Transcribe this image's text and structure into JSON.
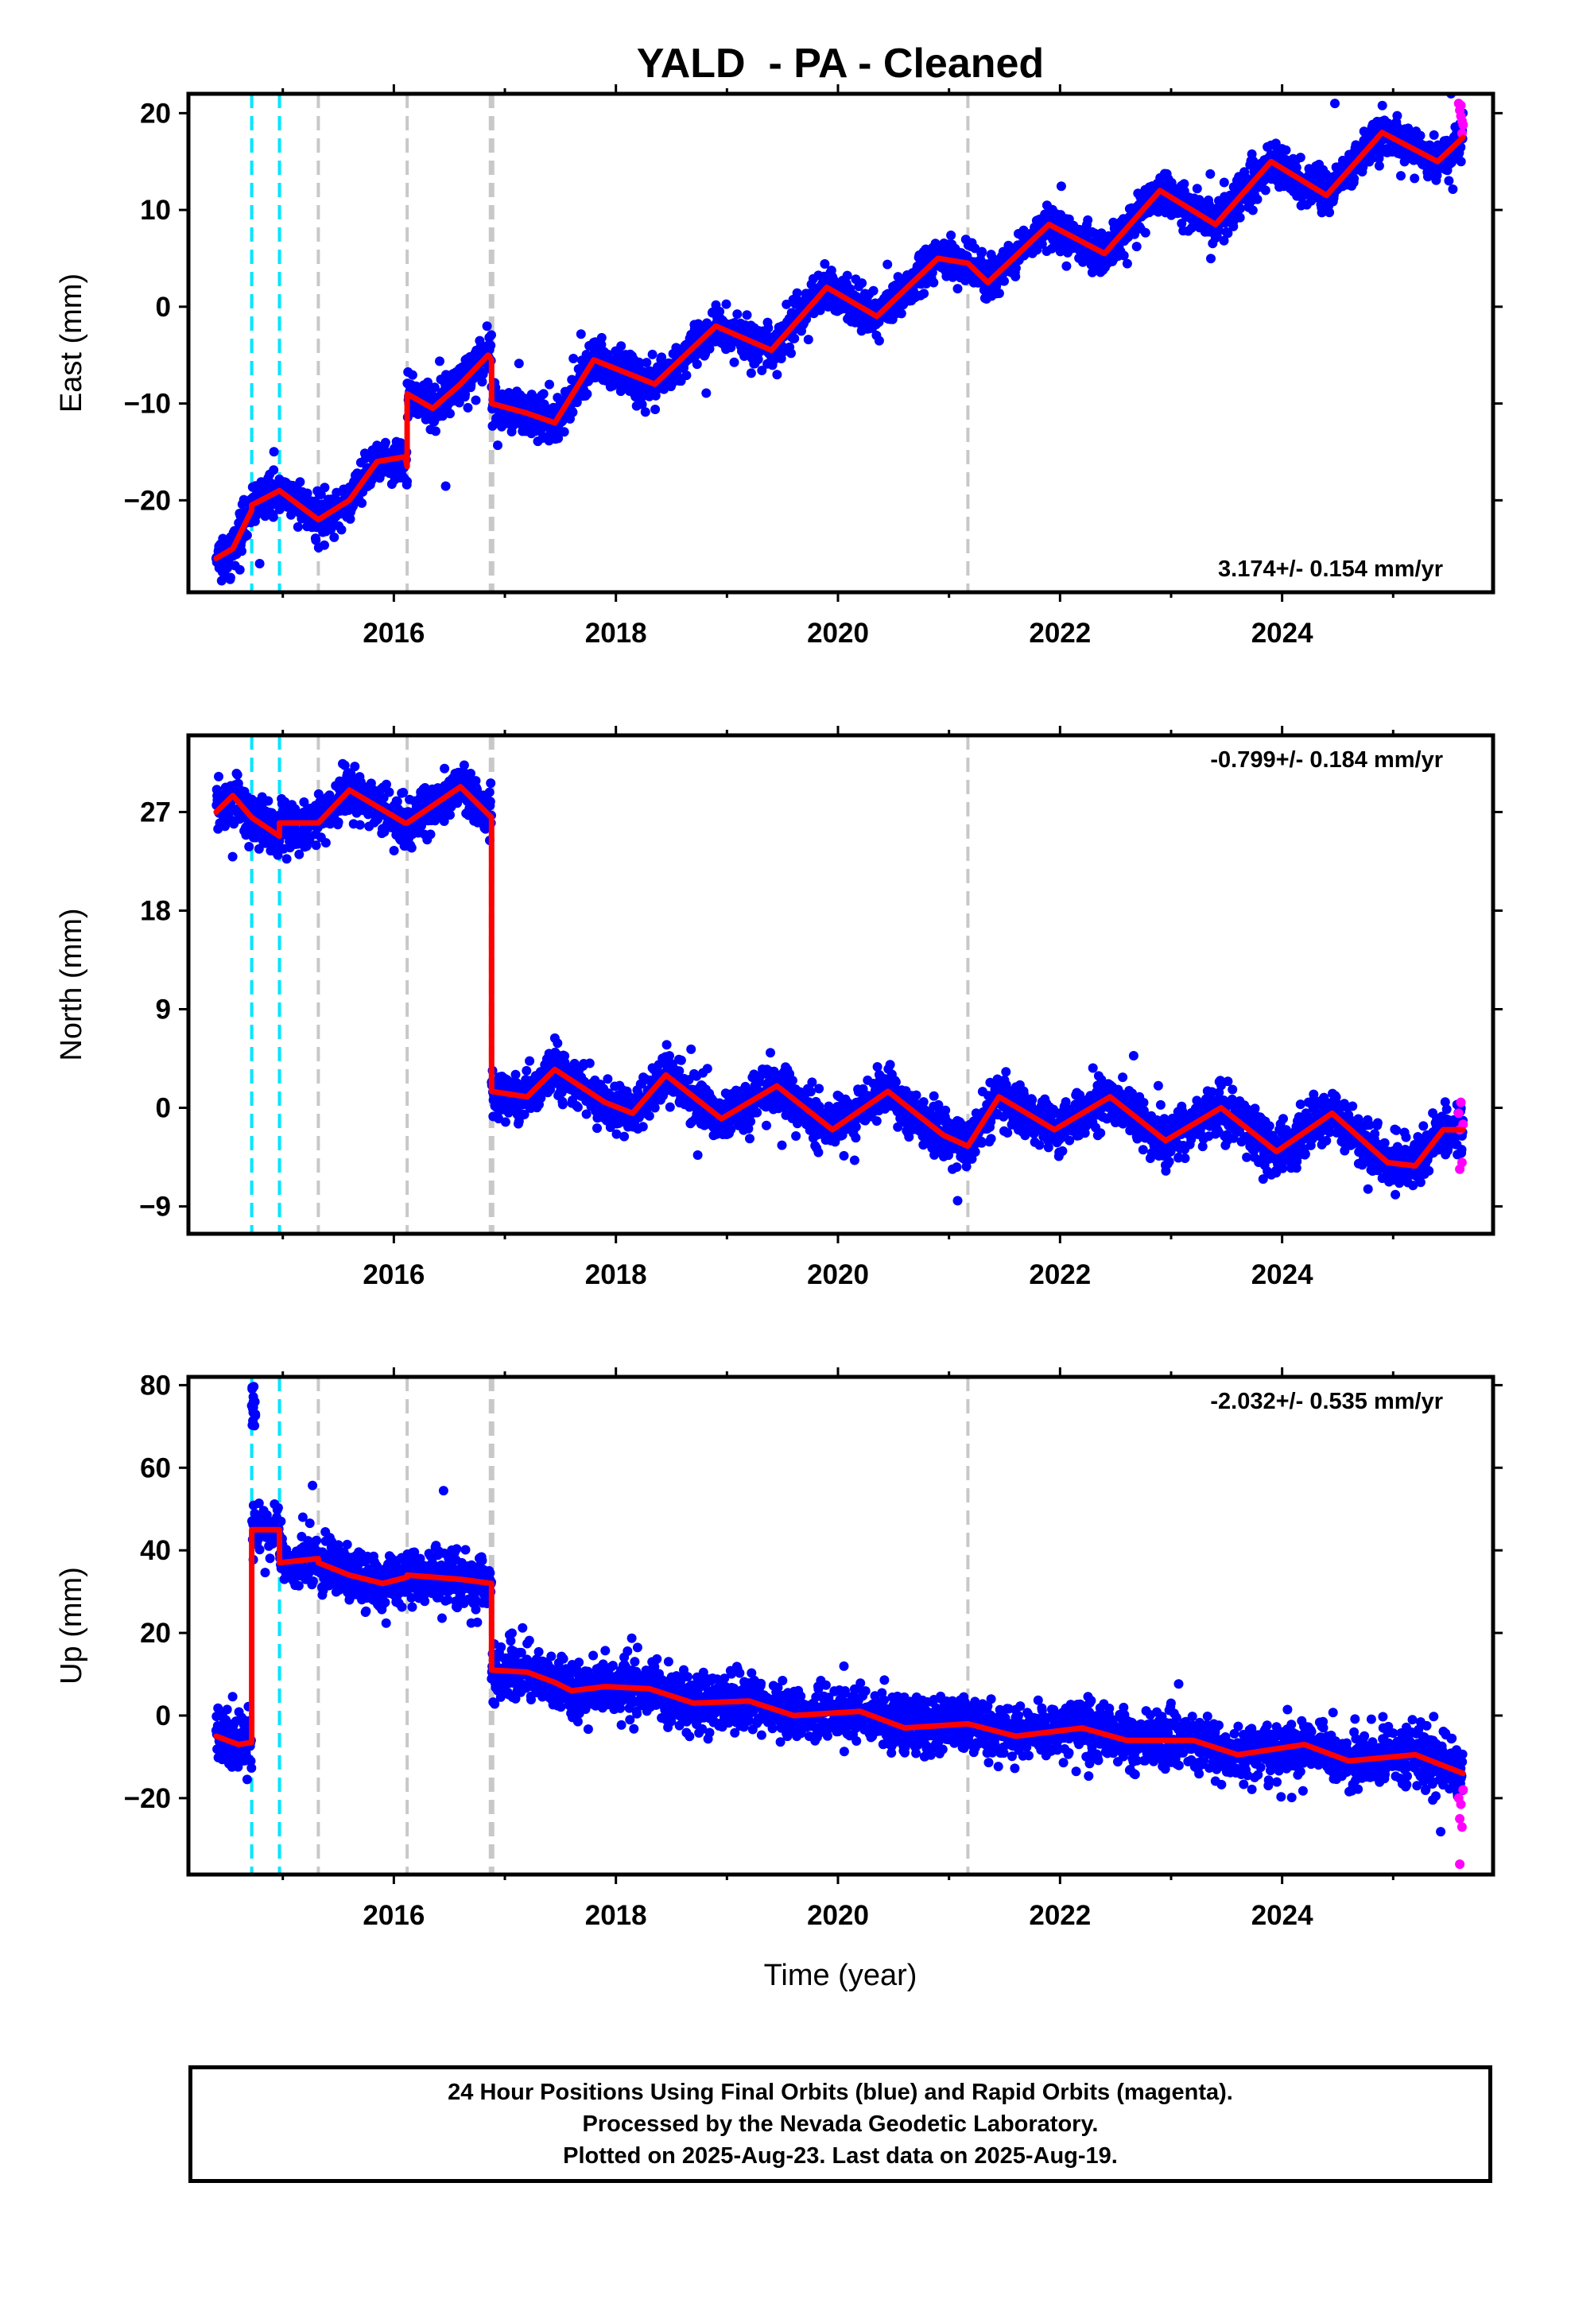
{
  "chart_data": {
    "title": "YALD  - PA - Cleaned",
    "xlabel": "Time (year)",
    "x_ticks": [
      2016,
      2018,
      2020,
      2022,
      2024
    ],
    "x_range": [
      2014.15,
      2025.9
    ],
    "data_start": 2014.4,
    "data_end": 2025.63,
    "steps_cyan": [
      2014.72,
      2014.97
    ],
    "steps_gray": [
      2015.32,
      2016.12,
      2016.88,
      2021.17
    ],
    "colors": {
      "final": "#0000ff",
      "rapid": "#ff00ff",
      "model": "#ff0000",
      "cyan": "#00e5ff",
      "gray": "#c8c8c8"
    },
    "panels": [
      {
        "type": "scatter",
        "ylabel": "East (mm)",
        "ylim": [
          -29.5,
          22
        ],
        "yticks": [
          20,
          10,
          0,
          -10,
          -20
        ],
        "rate_text": "3.174+/- 0.154 mm/yr",
        "rate_position": "bottom-right",
        "model_knots": [
          [
            2014.4,
            -26.0
          ],
          [
            2014.55,
            -25.0
          ],
          [
            2014.72,
            -21.0
          ],
          [
            2014.72,
            -20.5
          ],
          [
            2014.97,
            -19.0
          ],
          [
            2014.97,
            -19.0
          ],
          [
            2015.32,
            -22.0
          ],
          [
            2015.32,
            -22.0
          ],
          [
            2015.6,
            -20.0
          ],
          [
            2015.85,
            -16.0
          ],
          [
            2016.1,
            -15.5
          ],
          [
            2016.12,
            -16.5
          ],
          [
            2016.12,
            -9.0
          ],
          [
            2016.35,
            -10.5
          ],
          [
            2016.6,
            -8.0
          ],
          [
            2016.85,
            -5.0
          ],
          [
            2016.88,
            -5.5
          ],
          [
            2016.88,
            -10.0
          ],
          [
            2017.2,
            -11.0
          ],
          [
            2017.45,
            -12.0
          ],
          [
            2017.8,
            -5.5
          ],
          [
            2018.35,
            -8.0
          ],
          [
            2018.9,
            -2.0
          ],
          [
            2019.4,
            -4.5
          ],
          [
            2019.9,
            2.0
          ],
          [
            2020.35,
            -1.0
          ],
          [
            2020.9,
            5.0
          ],
          [
            2021.17,
            4.5
          ],
          [
            2021.35,
            2.5
          ],
          [
            2021.9,
            8.5
          ],
          [
            2022.4,
            5.5
          ],
          [
            2022.9,
            12.0
          ],
          [
            2023.4,
            8.5
          ],
          [
            2023.9,
            15.0
          ],
          [
            2024.4,
            11.5
          ],
          [
            2024.9,
            18.0
          ],
          [
            2025.4,
            15.0
          ],
          [
            2025.63,
            17.5
          ]
        ],
        "rapid_points": [
          [
            2025.59,
            21.0
          ],
          [
            2025.6,
            20.3
          ],
          [
            2025.61,
            19.7
          ],
          [
            2025.62,
            19.2
          ],
          [
            2025.63,
            18.8
          ],
          [
            2025.61,
            20.8
          ],
          [
            2025.62,
            17.9
          ]
        ]
      },
      {
        "type": "scatter",
        "ylabel": "North (mm)",
        "ylim": [
          -11.5,
          34
        ],
        "yticks": [
          27,
          18,
          9,
          0,
          -9
        ],
        "rate_text": "-0.799+/- 0.184 mm/yr",
        "rate_position": "top-right",
        "model_knots": [
          [
            2014.4,
            27.0
          ],
          [
            2014.55,
            28.5
          ],
          [
            2014.72,
            26.5
          ],
          [
            2014.72,
            26.5
          ],
          [
            2014.97,
            24.8
          ],
          [
            2014.97,
            26.0
          ],
          [
            2015.32,
            26.0
          ],
          [
            2015.6,
            29.0
          ],
          [
            2016.1,
            26.0
          ],
          [
            2016.12,
            26.0
          ],
          [
            2016.6,
            29.3
          ],
          [
            2016.88,
            26.5
          ],
          [
            2016.88,
            1.5
          ],
          [
            2017.2,
            1.0
          ],
          [
            2017.45,
            3.5
          ],
          [
            2017.9,
            0.5
          ],
          [
            2018.15,
            -0.5
          ],
          [
            2018.45,
            3.0
          ],
          [
            2018.95,
            -1.0
          ],
          [
            2019.45,
            2.0
          ],
          [
            2019.95,
            -2.0
          ],
          [
            2020.45,
            1.5
          ],
          [
            2020.95,
            -2.5
          ],
          [
            2021.17,
            -3.5
          ],
          [
            2021.45,
            1.0
          ],
          [
            2021.95,
            -2.0
          ],
          [
            2022.45,
            1.0
          ],
          [
            2022.95,
            -3.0
          ],
          [
            2023.45,
            0.0
          ],
          [
            2023.95,
            -4.0
          ],
          [
            2024.45,
            -0.5
          ],
          [
            2024.95,
            -5.0
          ],
          [
            2025.2,
            -5.3
          ],
          [
            2025.45,
            -2.0
          ],
          [
            2025.63,
            -2.0
          ]
        ],
        "rapid_points": [
          [
            2025.59,
            -0.5
          ],
          [
            2025.6,
            -2.0
          ],
          [
            2025.61,
            0.5
          ],
          [
            2025.62,
            -5.0
          ],
          [
            2025.6,
            -5.6
          ],
          [
            2025.63,
            -1.5
          ]
        ]
      },
      {
        "type": "scatter",
        "ylabel": "Up (mm)",
        "ylim": [
          -38.5,
          82
        ],
        "yticks": [
          80,
          60,
          40,
          20,
          0,
          -20
        ],
        "rate_text": "-2.032+/- 0.535 mm/yr",
        "rate_position": "top-right",
        "model_knots": [
          [
            2014.4,
            -5.0
          ],
          [
            2014.6,
            -7.0
          ],
          [
            2014.72,
            -6.5
          ],
          [
            2014.72,
            45.0
          ],
          [
            2014.97,
            45.0
          ],
          [
            2014.97,
            37.0
          ],
          [
            2015.32,
            38.0
          ],
          [
            2015.32,
            37.0
          ],
          [
            2015.6,
            34.0
          ],
          [
            2015.9,
            32.0
          ],
          [
            2016.12,
            33.5
          ],
          [
            2016.12,
            34.0
          ],
          [
            2016.6,
            33.0
          ],
          [
            2016.88,
            32.0
          ],
          [
            2016.88,
            11.0
          ],
          [
            2017.2,
            10.5
          ],
          [
            2017.45,
            8.0
          ],
          [
            2017.6,
            6.0
          ],
          [
            2017.9,
            7.0
          ],
          [
            2018.3,
            6.5
          ],
          [
            2018.7,
            3.0
          ],
          [
            2019.2,
            3.5
          ],
          [
            2019.6,
            0.0
          ],
          [
            2020.2,
            1.0
          ],
          [
            2020.6,
            -3.0
          ],
          [
            2021.17,
            -2.0
          ],
          [
            2021.6,
            -5.0
          ],
          [
            2022.2,
            -3.0
          ],
          [
            2022.6,
            -6.0
          ],
          [
            2023.2,
            -6.0
          ],
          [
            2023.6,
            -9.5
          ],
          [
            2024.2,
            -7.0
          ],
          [
            2024.6,
            -11.0
          ],
          [
            2025.2,
            -9.5
          ],
          [
            2025.63,
            -14.0
          ]
        ],
        "rapid_points": [
          [
            2025.59,
            -20.0
          ],
          [
            2025.6,
            -25.0
          ],
          [
            2025.61,
            -21.5
          ],
          [
            2025.62,
            -27.0
          ],
          [
            2025.6,
            -36.0
          ],
          [
            2025.63,
            -18.0
          ]
        ]
      }
    ]
  },
  "caption": {
    "line1": "24 Hour Positions Using Final Orbits (blue) and Rapid Orbits (magenta).",
    "line2": "Processed by the Nevada Geodetic Laboratory.",
    "line3": "Plotted on 2025-Aug-23. Last data on 2025-Aug-19."
  }
}
